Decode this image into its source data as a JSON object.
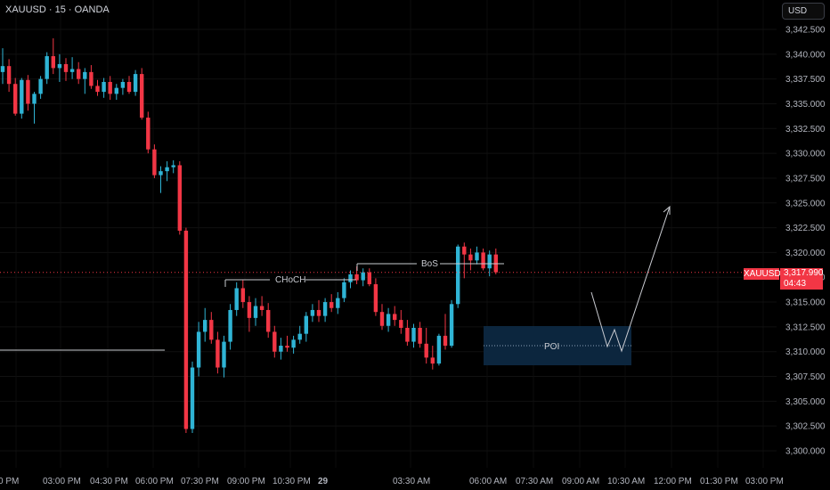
{
  "header": {
    "title": "XAUUSD · 15 · OANDA",
    "currency_button": "USD"
  },
  "price_axis": {
    "labels": [
      "3,342.500",
      "3,340.000",
      "3,337.500",
      "3,335.000",
      "3,332.500",
      "3,330.000",
      "3,327.500",
      "3,325.000",
      "3,322.500",
      "3,320.000",
      "3,317.500",
      "3,315.000",
      "3,312.500",
      "3,310.000",
      "3,307.500",
      "3,305.000",
      "3,302.500",
      "3,300.000"
    ],
    "values": [
      3342.5,
      3340,
      3337.5,
      3335,
      3332.5,
      3330,
      3327.5,
      3325,
      3322.5,
      3320,
      3317.5,
      3315,
      3312.5,
      3310,
      3307.5,
      3305,
      3302.5,
      3300
    ]
  },
  "time_axis": {
    "labels": [
      "0 PM",
      "03:00 PM",
      "04:30 PM",
      "06:00 PM",
      "07:30 PM",
      "09:00 PM",
      "10:30 PM",
      "29",
      "03:30 AM",
      "06:00 AM",
      "07:30 AM",
      "09:00 AM",
      "10:30 AM",
      "12:00 PM",
      "01:30 PM",
      "03:00 PM"
    ]
  },
  "current_price": {
    "symbol": "XAUUSD",
    "price": "3,317.990",
    "countdown": "04:43",
    "value": 3317.99
  },
  "annotations": {
    "choch": "CHoCH",
    "bos": "BoS",
    "poi": "POI"
  },
  "colors": {
    "up": "#2fb4d5",
    "down": "#f23645",
    "background": "#000000",
    "axis_text": "#b2b5be"
  },
  "chart_data": {
    "type": "candlestick",
    "x_labels": [
      "0 PM",
      "03:00 PM",
      "04:30 PM",
      "06:00 PM",
      "07:30 PM",
      "09:00 PM",
      "10:30 PM",
      "29",
      "03:30 AM",
      "06:00 AM",
      "07:30 AM",
      "09:00 AM",
      "10:30 AM",
      "12:00 PM",
      "01:30 PM",
      "03:00 PM"
    ],
    "y_range": [
      3299.2,
      3344.0
    ],
    "candles": [
      [
        3338.2,
        3340.6,
        3337.0,
        3338.8
      ],
      [
        3338.8,
        3339.5,
        3336.2,
        3337.0
      ],
      [
        3337.0,
        3337.6,
        3333.8,
        3334.0
      ],
      [
        3334.0,
        3337.6,
        3333.5,
        3337.4
      ],
      [
        3337.4,
        3337.9,
        3334.3,
        3335.0
      ],
      [
        3335.0,
        3336.2,
        3333.0,
        3336.0
      ],
      [
        3336.0,
        3337.8,
        3335.5,
        3337.5
      ],
      [
        3337.5,
        3340.2,
        3337.0,
        3339.8
      ],
      [
        3339.8,
        3341.6,
        3338.0,
        3338.6
      ],
      [
        3338.6,
        3340.0,
        3337.2,
        3339.0
      ],
      [
        3339.0,
        3339.6,
        3337.3,
        3338.2
      ],
      [
        3338.2,
        3339.7,
        3337.5,
        3338.5
      ],
      [
        3338.5,
        3339.2,
        3337.0,
        3337.5
      ],
      [
        3337.5,
        3338.6,
        3336.0,
        3338.2
      ],
      [
        3338.2,
        3338.9,
        3336.5,
        3336.8
      ],
      [
        3336.8,
        3337.4,
        3335.8,
        3336.2
      ],
      [
        3336.2,
        3337.6,
        3335.6,
        3337.2
      ],
      [
        3337.2,
        3337.8,
        3335.4,
        3336.0
      ],
      [
        3336.0,
        3337.0,
        3335.4,
        3336.6
      ],
      [
        3336.6,
        3337.5,
        3335.9,
        3337.2
      ],
      [
        3337.2,
        3337.8,
        3336.0,
        3336.2
      ],
      [
        3336.2,
        3338.4,
        3335.8,
        3338.0
      ],
      [
        3338.0,
        3338.6,
        3333.4,
        3333.6
      ],
      [
        3333.6,
        3334.2,
        3330.0,
        3330.4
      ],
      [
        3330.4,
        3330.9,
        3327.5,
        3327.8
      ],
      [
        3327.8,
        3328.7,
        3326.0,
        3328.2
      ],
      [
        3328.2,
        3329.2,
        3327.2,
        3328.6
      ],
      [
        3328.6,
        3329.3,
        3328.0,
        3328.8
      ],
      [
        3328.8,
        3329.2,
        3321.8,
        3322.2
      ],
      [
        3322.2,
        3322.5,
        3301.8,
        3302.2
      ],
      [
        3302.2,
        3309.0,
        3301.8,
        3308.4
      ],
      [
        3308.4,
        3313.0,
        3307.5,
        3312.0
      ],
      [
        3312.0,
        3314.4,
        3311.0,
        3313.2
      ],
      [
        3313.2,
        3314.0,
        3310.8,
        3311.2
      ],
      [
        3311.2,
        3312.0,
        3307.8,
        3308.4
      ],
      [
        3308.4,
        3311.6,
        3307.4,
        3311.0
      ],
      [
        3311.0,
        3314.8,
        3310.2,
        3314.2
      ],
      [
        3314.2,
        3317.0,
        3313.6,
        3316.4
      ],
      [
        3316.4,
        3317.2,
        3314.4,
        3315.0
      ],
      [
        3315.0,
        3315.6,
        3312.0,
        3313.4
      ],
      [
        3313.4,
        3315.4,
        3312.6,
        3314.6
      ],
      [
        3314.6,
        3315.6,
        3313.6,
        3314.2
      ],
      [
        3314.2,
        3314.9,
        3311.4,
        3312.0
      ],
      [
        3312.0,
        3312.6,
        3309.4,
        3310.0
      ],
      [
        3310.0,
        3311.4,
        3309.2,
        3310.6
      ],
      [
        3310.6,
        3311.6,
        3310.0,
        3310.4
      ],
      [
        3310.4,
        3311.6,
        3309.8,
        3311.2
      ],
      [
        3311.2,
        3312.6,
        3310.8,
        3311.8
      ],
      [
        3311.8,
        3314.0,
        3311.0,
        3313.6
      ],
      [
        3313.6,
        3314.8,
        3313.0,
        3314.2
      ],
      [
        3314.2,
        3315.2,
        3313.0,
        3313.6
      ],
      [
        3313.6,
        3315.4,
        3313.0,
        3315.0
      ],
      [
        3315.0,
        3315.8,
        3314.0,
        3314.4
      ],
      [
        3314.4,
        3316.0,
        3313.8,
        3315.4
      ],
      [
        3315.4,
        3317.4,
        3315.0,
        3317.0
      ],
      [
        3317.0,
        3318.2,
        3316.4,
        3317.8
      ],
      [
        3317.8,
        3318.6,
        3316.8,
        3317.2
      ],
      [
        3317.2,
        3318.4,
        3316.6,
        3318.0
      ],
      [
        3318.0,
        3318.4,
        3316.6,
        3316.8
      ],
      [
        3316.8,
        3317.4,
        3313.6,
        3314.0
      ],
      [
        3314.0,
        3314.8,
        3312.2,
        3312.6
      ],
      [
        3312.6,
        3314.4,
        3312.0,
        3313.8
      ],
      [
        3313.8,
        3314.6,
        3312.6,
        3313.2
      ],
      [
        3313.2,
        3314.2,
        3311.8,
        3312.4
      ],
      [
        3312.4,
        3313.2,
        3310.6,
        3311.0
      ],
      [
        3311.0,
        3312.8,
        3310.4,
        3312.4
      ],
      [
        3312.4,
        3313.0,
        3310.4,
        3310.8
      ],
      [
        3310.8,
        3312.4,
        3308.8,
        3309.4
      ],
      [
        3309.4,
        3310.6,
        3308.2,
        3308.8
      ],
      [
        3308.8,
        3311.8,
        3308.6,
        3311.6
      ],
      [
        3311.6,
        3313.8,
        3310.2,
        3310.6
      ],
      [
        3310.6,
        3315.2,
        3310.4,
        3314.8
      ],
      [
        3314.8,
        3320.8,
        3314.4,
        3320.6
      ],
      [
        3320.6,
        3321.0,
        3317.4,
        3319.8
      ],
      [
        3319.8,
        3320.4,
        3318.2,
        3319.2
      ],
      [
        3319.2,
        3320.6,
        3318.8,
        3320.0
      ],
      [
        3320.0,
        3320.4,
        3318.2,
        3318.4
      ],
      [
        3318.4,
        3320.2,
        3317.6,
        3319.8
      ],
      [
        3319.8,
        3320.4,
        3317.8,
        3318.0
      ]
    ]
  }
}
